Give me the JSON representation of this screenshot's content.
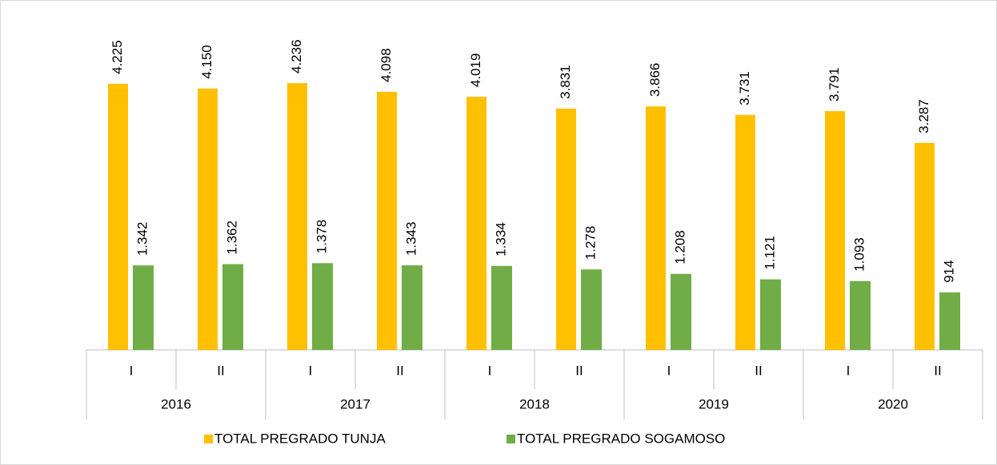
{
  "chart_data": {
    "type": "bar",
    "categories": [
      "I",
      "II",
      "I",
      "II",
      "I",
      "II",
      "I",
      "II",
      "I",
      "II"
    ],
    "groups": [
      "2016",
      "2017",
      "2018",
      "2019",
      "2020"
    ],
    "series": [
      {
        "name": "TOTAL PREGRADO TUNJA",
        "color": "#FFC000",
        "values": [
          4225,
          4150,
          4236,
          4098,
          4019,
          3831,
          3866,
          3731,
          3791,
          3287
        ],
        "value_labels": [
          "4.225",
          "4.150",
          "4.236",
          "4.098",
          "4.019",
          "3.831",
          "3.866",
          "3.731",
          "3.791",
          "3.287"
        ]
      },
      {
        "name": "TOTAL PREGRADO SOGAMOSO",
        "color": "#70AD47",
        "values": [
          1342,
          1362,
          1378,
          1343,
          1334,
          1278,
          1208,
          1121,
          1093,
          914
        ],
        "value_labels": [
          "1.342",
          "1.362",
          "1.378",
          "1.343",
          "1.334",
          "1.278",
          "1.208",
          "1.121",
          "1.093",
          "914"
        ]
      }
    ],
    "legend": "bottom"
  }
}
